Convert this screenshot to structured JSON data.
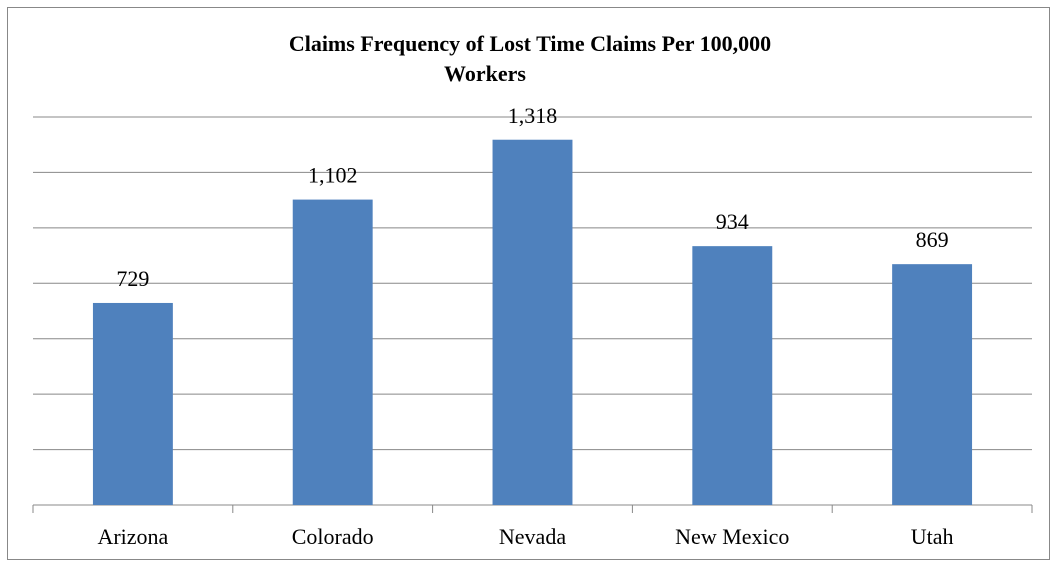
{
  "chart_data": {
    "type": "bar",
    "title": [
      "Claims Frequency of Lost Time Claims Per 100,000",
      "Workers"
    ],
    "categories": [
      "Arizona",
      "Colorado",
      "Nevada",
      "New Mexico",
      "Utah"
    ],
    "values": [
      729,
      1102,
      1318,
      934,
      869
    ],
    "value_labels": [
      "729",
      "1,102",
      "1,318",
      "934",
      "869"
    ],
    "color": "#4f81bd",
    "ylim": [
      0,
      1400
    ],
    "yticks": [
      0,
      200,
      400,
      600,
      800,
      1000,
      1200,
      1400
    ],
    "grid": true
  }
}
